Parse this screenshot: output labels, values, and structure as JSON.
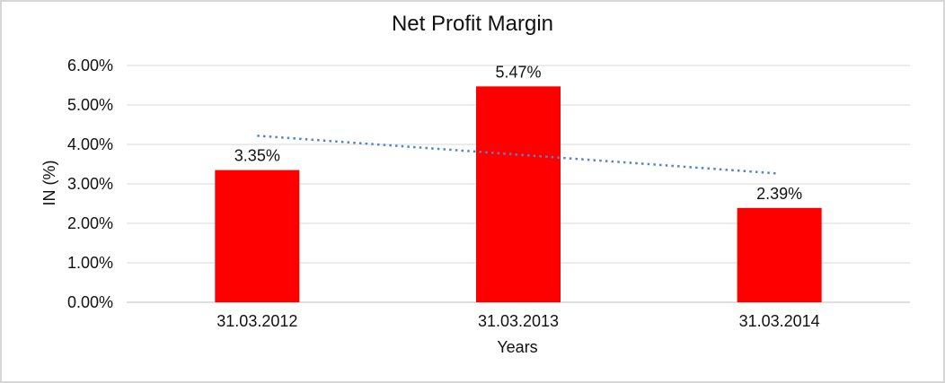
{
  "frame": {
    "border_color": "#d6d6d6",
    "top_border_color": "#1a1a1a"
  },
  "chart_data": {
    "type": "bar",
    "title": "Net Profit Margin",
    "xlabel": "Years",
    "ylabel": "IN (%)",
    "categories": [
      "31.03.2012",
      "31.03.2013",
      "31.03.2014"
    ],
    "series": [
      {
        "name": "Net Profit Margin",
        "values": [
          3.35,
          5.47,
          2.39
        ],
        "data_labels": [
          "3.35%",
          "5.47%",
          "2.39%"
        ],
        "color": "#FF0000"
      }
    ],
    "trendline": {
      "type": "linear",
      "style": "dotted",
      "color": "#4F86C6",
      "start_value": 4.22,
      "end_value": 3.26
    },
    "ylim": [
      0,
      6
    ],
    "ytick_step": 1,
    "ytick_labels": [
      "0.00%",
      "1.00%",
      "2.00%",
      "3.00%",
      "4.00%",
      "5.00%",
      "6.00%"
    ],
    "grid": true,
    "legend": "none",
    "gridline_color": "#D9D9D9",
    "axis_line_color": "#BFBFBF",
    "text_color": "#111111"
  }
}
